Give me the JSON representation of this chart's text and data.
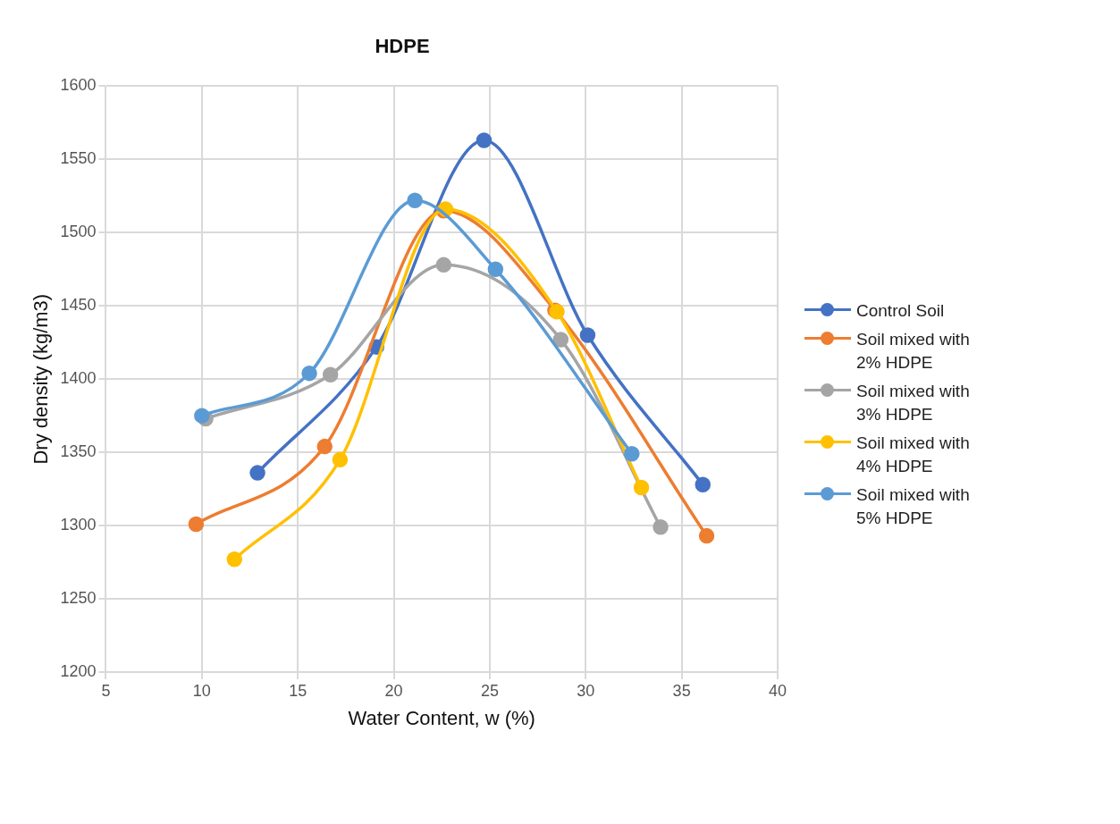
{
  "chart_data": {
    "type": "line",
    "title": "HDPE",
    "xlabel": "Water Content, w (%)",
    "ylabel": "Dry density (kg/m3)",
    "xlim": [
      5,
      40
    ],
    "xticks": [
      5,
      10,
      15,
      20,
      25,
      30,
      35,
      40
    ],
    "ylim": [
      1200,
      1600
    ],
    "yticks": [
      1200,
      1250,
      1300,
      1350,
      1400,
      1450,
      1500,
      1550,
      1600
    ],
    "grid": true,
    "legend": "right",
    "marker": "circle",
    "line_style": "solid",
    "series": [
      {
        "name": "Control Soil",
        "color": "#4472c4",
        "x": [
          12.9,
          19.1,
          24.7,
          30.1,
          36.1
        ],
        "values": [
          1336,
          1422,
          1563,
          1430,
          1328
        ]
      },
      {
        "name": "Soil mixed with 2% HDPE",
        "color": "#ed7d31",
        "x": [
          9.7,
          16.4,
          22.6,
          28.4,
          36.3
        ],
        "values": [
          1301,
          1354,
          1515,
          1447,
          1293
        ]
      },
      {
        "name": "Soil mixed with 3% HDPE",
        "color": "#a5a5a5",
        "x": [
          10.2,
          16.7,
          22.6,
          28.7,
          33.9
        ],
        "values": [
          1373,
          1403,
          1478,
          1427,
          1299
        ]
      },
      {
        "name": "Soil mixed with 4% HDPE",
        "color": "#ffc000",
        "x": [
          11.7,
          17.2,
          22.7,
          28.5,
          32.9
        ],
        "values": [
          1277,
          1345,
          1516,
          1446,
          1326
        ]
      },
      {
        "name": "Soil mixed with 5% HDPE",
        "color": "#5b9bd5",
        "x": [
          10.0,
          15.6,
          21.1,
          25.3,
          32.4
        ],
        "values": [
          1375,
          1404,
          1522,
          1475,
          1349
        ]
      }
    ]
  }
}
